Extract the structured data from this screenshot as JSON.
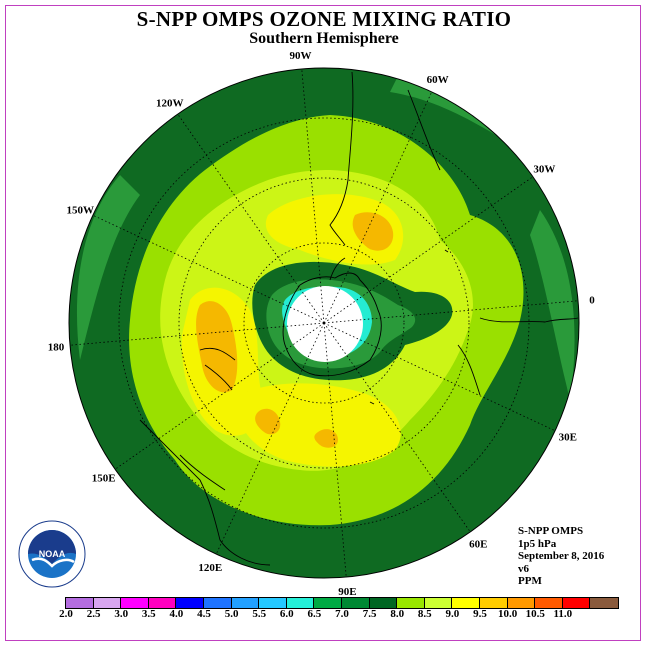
{
  "title": "S-NPP OMPS OZONE MIXING RATIO",
  "subtitle": "Southern Hemisphere",
  "longitude_labels": [
    {
      "text": "0",
      "lon": 0
    },
    {
      "text": "30E",
      "lon": 30
    },
    {
      "text": "60E",
      "lon": 60
    },
    {
      "text": "90E",
      "lon": 90
    },
    {
      "text": "120E",
      "lon": 120
    },
    {
      "text": "150E",
      "lon": 150
    },
    {
      "text": "180",
      "lon": 180
    },
    {
      "text": "150W",
      "lon": -150
    },
    {
      "text": "120W",
      "lon": -120
    },
    {
      "text": "90W",
      "lon": -90
    },
    {
      "text": "60W",
      "lon": -60
    },
    {
      "text": "30W",
      "lon": -30
    }
  ],
  "info": {
    "instrument": "S-NPP OMPS",
    "level": "1p5 hPa",
    "date": "September 8, 2016",
    "version": "v6",
    "units": "PPM"
  },
  "logo": {
    "name": "NOAA",
    "ring_text": "NATIONAL OCEANIC AND ATMOSPHERIC ADMINISTRATION · U.S. DEPARTMENT OF COMMERCE",
    "colors": {
      "ring": "#ffffff",
      "upper": "#1a3c8c",
      "lower": "#1a73c7",
      "bird": "#ffffff"
    }
  },
  "colorbar": {
    "ticks": [
      "2.0",
      "2.5",
      "3.0",
      "3.5",
      "4.0",
      "4.5",
      "5.0",
      "5.5",
      "6.0",
      "6.5",
      "7.0",
      "7.5",
      "8.0",
      "8.5",
      "9.0",
      "9.5",
      "10.0",
      "10.5",
      "11.0"
    ],
    "colors": [
      "#b46de0",
      "#d8a6f0",
      "#ff00ff",
      "#ff00c0",
      "#0000ff",
      "#1e73ff",
      "#22a0ff",
      "#25c8ff",
      "#25f0d8",
      "#00aa44",
      "#008833",
      "#006622",
      "#99e600",
      "#ccff33",
      "#ffff00",
      "#ffcc00",
      "#ff9900",
      "#ff5a00",
      "#ff0000",
      "#8a5a3c"
    ]
  },
  "map_colors": {
    "6.5": "#2a9a3a",
    "7.0": "#0f6a22",
    "7.5": "#9ae000",
    "8.0": "#ccf516",
    "8.5": "#f5f500",
    "9.0": "#f5b800",
    "5.5": "#25ecd2",
    "polar_cap": "#ffffff"
  }
}
